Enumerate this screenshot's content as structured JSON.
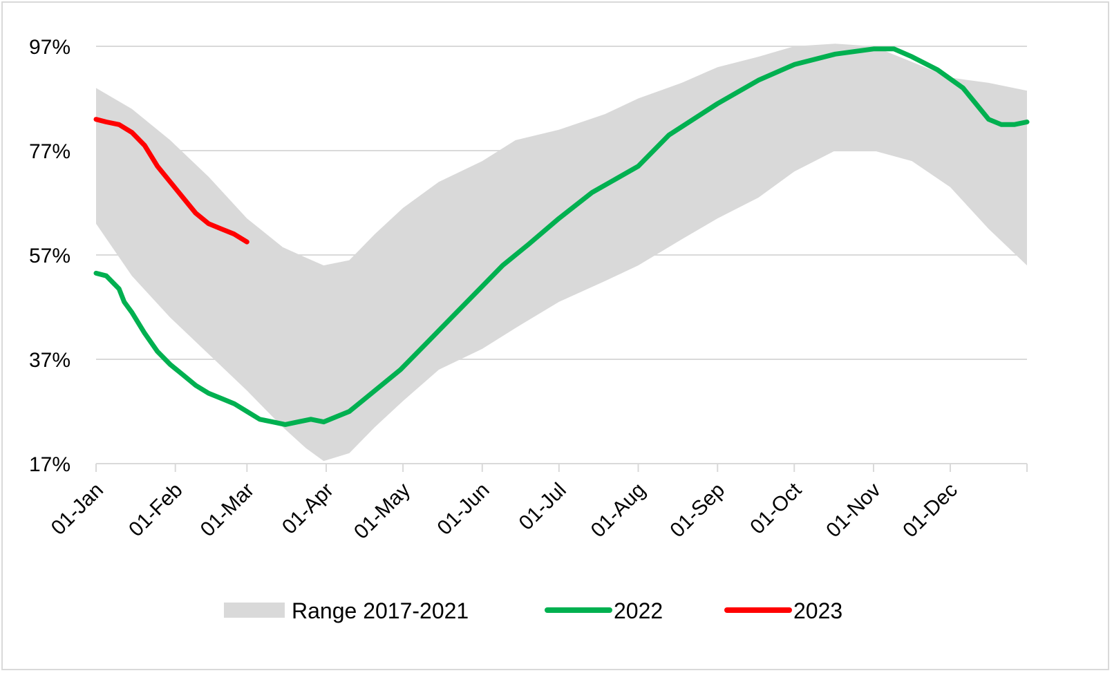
{
  "chart_data": {
    "type": "area",
    "title": "",
    "xlabel": "",
    "ylabel": "",
    "x_ticks": [
      "01-Jan",
      "01-Feb",
      "01-Mar",
      "01-Apr",
      "01-May",
      "01-Jun",
      "01-Jul",
      "01-Aug",
      "01-Sep",
      "01-Oct",
      "01-Nov",
      "01-Dec"
    ],
    "y_ticks": [
      "17%",
      "37%",
      "57%",
      "77%",
      "97%"
    ],
    "ylim": [
      17,
      97
    ],
    "xlim_days": [
      1,
      365
    ],
    "grid": "horizontal",
    "legend_position": "bottom",
    "series": [
      {
        "name": "Range 2017-2021",
        "kind": "range",
        "color": "#d9d9d9",
        "x": [
          1,
          15,
          30,
          45,
          60,
          74,
          83,
          90,
          100,
          110,
          121,
          135,
          152,
          165,
          182,
          200,
          213,
          230,
          244,
          260,
          274,
          290,
          305,
          320,
          335,
          350,
          365
        ],
        "upper": [
          89,
          85,
          79,
          72,
          64,
          58.5,
          56.5,
          55,
          56,
          61,
          66,
          71,
          75,
          79,
          81,
          84,
          87,
          90,
          93,
          95,
          97,
          97.5,
          97,
          94,
          91,
          90,
          88.5
        ],
        "lower": [
          63,
          53,
          45,
          38,
          31,
          24,
          20,
          17.5,
          19,
          24,
          29,
          35,
          39,
          43,
          48,
          52,
          55,
          60,
          64,
          68,
          73,
          77,
          77,
          75,
          70,
          62,
          55
        ]
      },
      {
        "name": "2022",
        "kind": "line",
        "color": "#00b050",
        "x": [
          1,
          5,
          10,
          12,
          15,
          20,
          25,
          30,
          35,
          40,
          45,
          50,
          55,
          60,
          65,
          70,
          75,
          80,
          85,
          90,
          95,
          100,
          105,
          110,
          115,
          120,
          130,
          140,
          152,
          160,
          170,
          182,
          195,
          213,
          225,
          244,
          260,
          274,
          290,
          305,
          313,
          320,
          330,
          340,
          345,
          350,
          355,
          360,
          365
        ],
        "values": [
          53.5,
          53,
          50.5,
          48,
          46,
          42,
          38.5,
          36,
          34,
          32,
          30.5,
          29.5,
          28.5,
          27,
          25.5,
          25,
          24.5,
          25,
          25.5,
          25,
          26,
          27,
          29,
          31,
          33,
          35,
          40,
          45,
          51,
          55,
          59,
          64,
          69,
          74,
          80,
          86,
          90.5,
          93.5,
          95.5,
          96.5,
          96.5,
          95,
          92.5,
          89,
          86,
          83,
          82,
          82,
          82.5
        ]
      },
      {
        "name": "2023",
        "kind": "line",
        "color": "#ff0000",
        "x": [
          1,
          5,
          10,
          15,
          20,
          25,
          30,
          35,
          40,
          45,
          50,
          55,
          60
        ],
        "values": [
          83,
          82.5,
          82,
          80.5,
          78,
          74,
          71,
          68,
          65,
          63,
          62,
          61,
          59.5
        ]
      }
    ]
  },
  "legend": {
    "range_label": "Range 2017-2021",
    "line1_label": "2022",
    "line2_label": "2023"
  }
}
